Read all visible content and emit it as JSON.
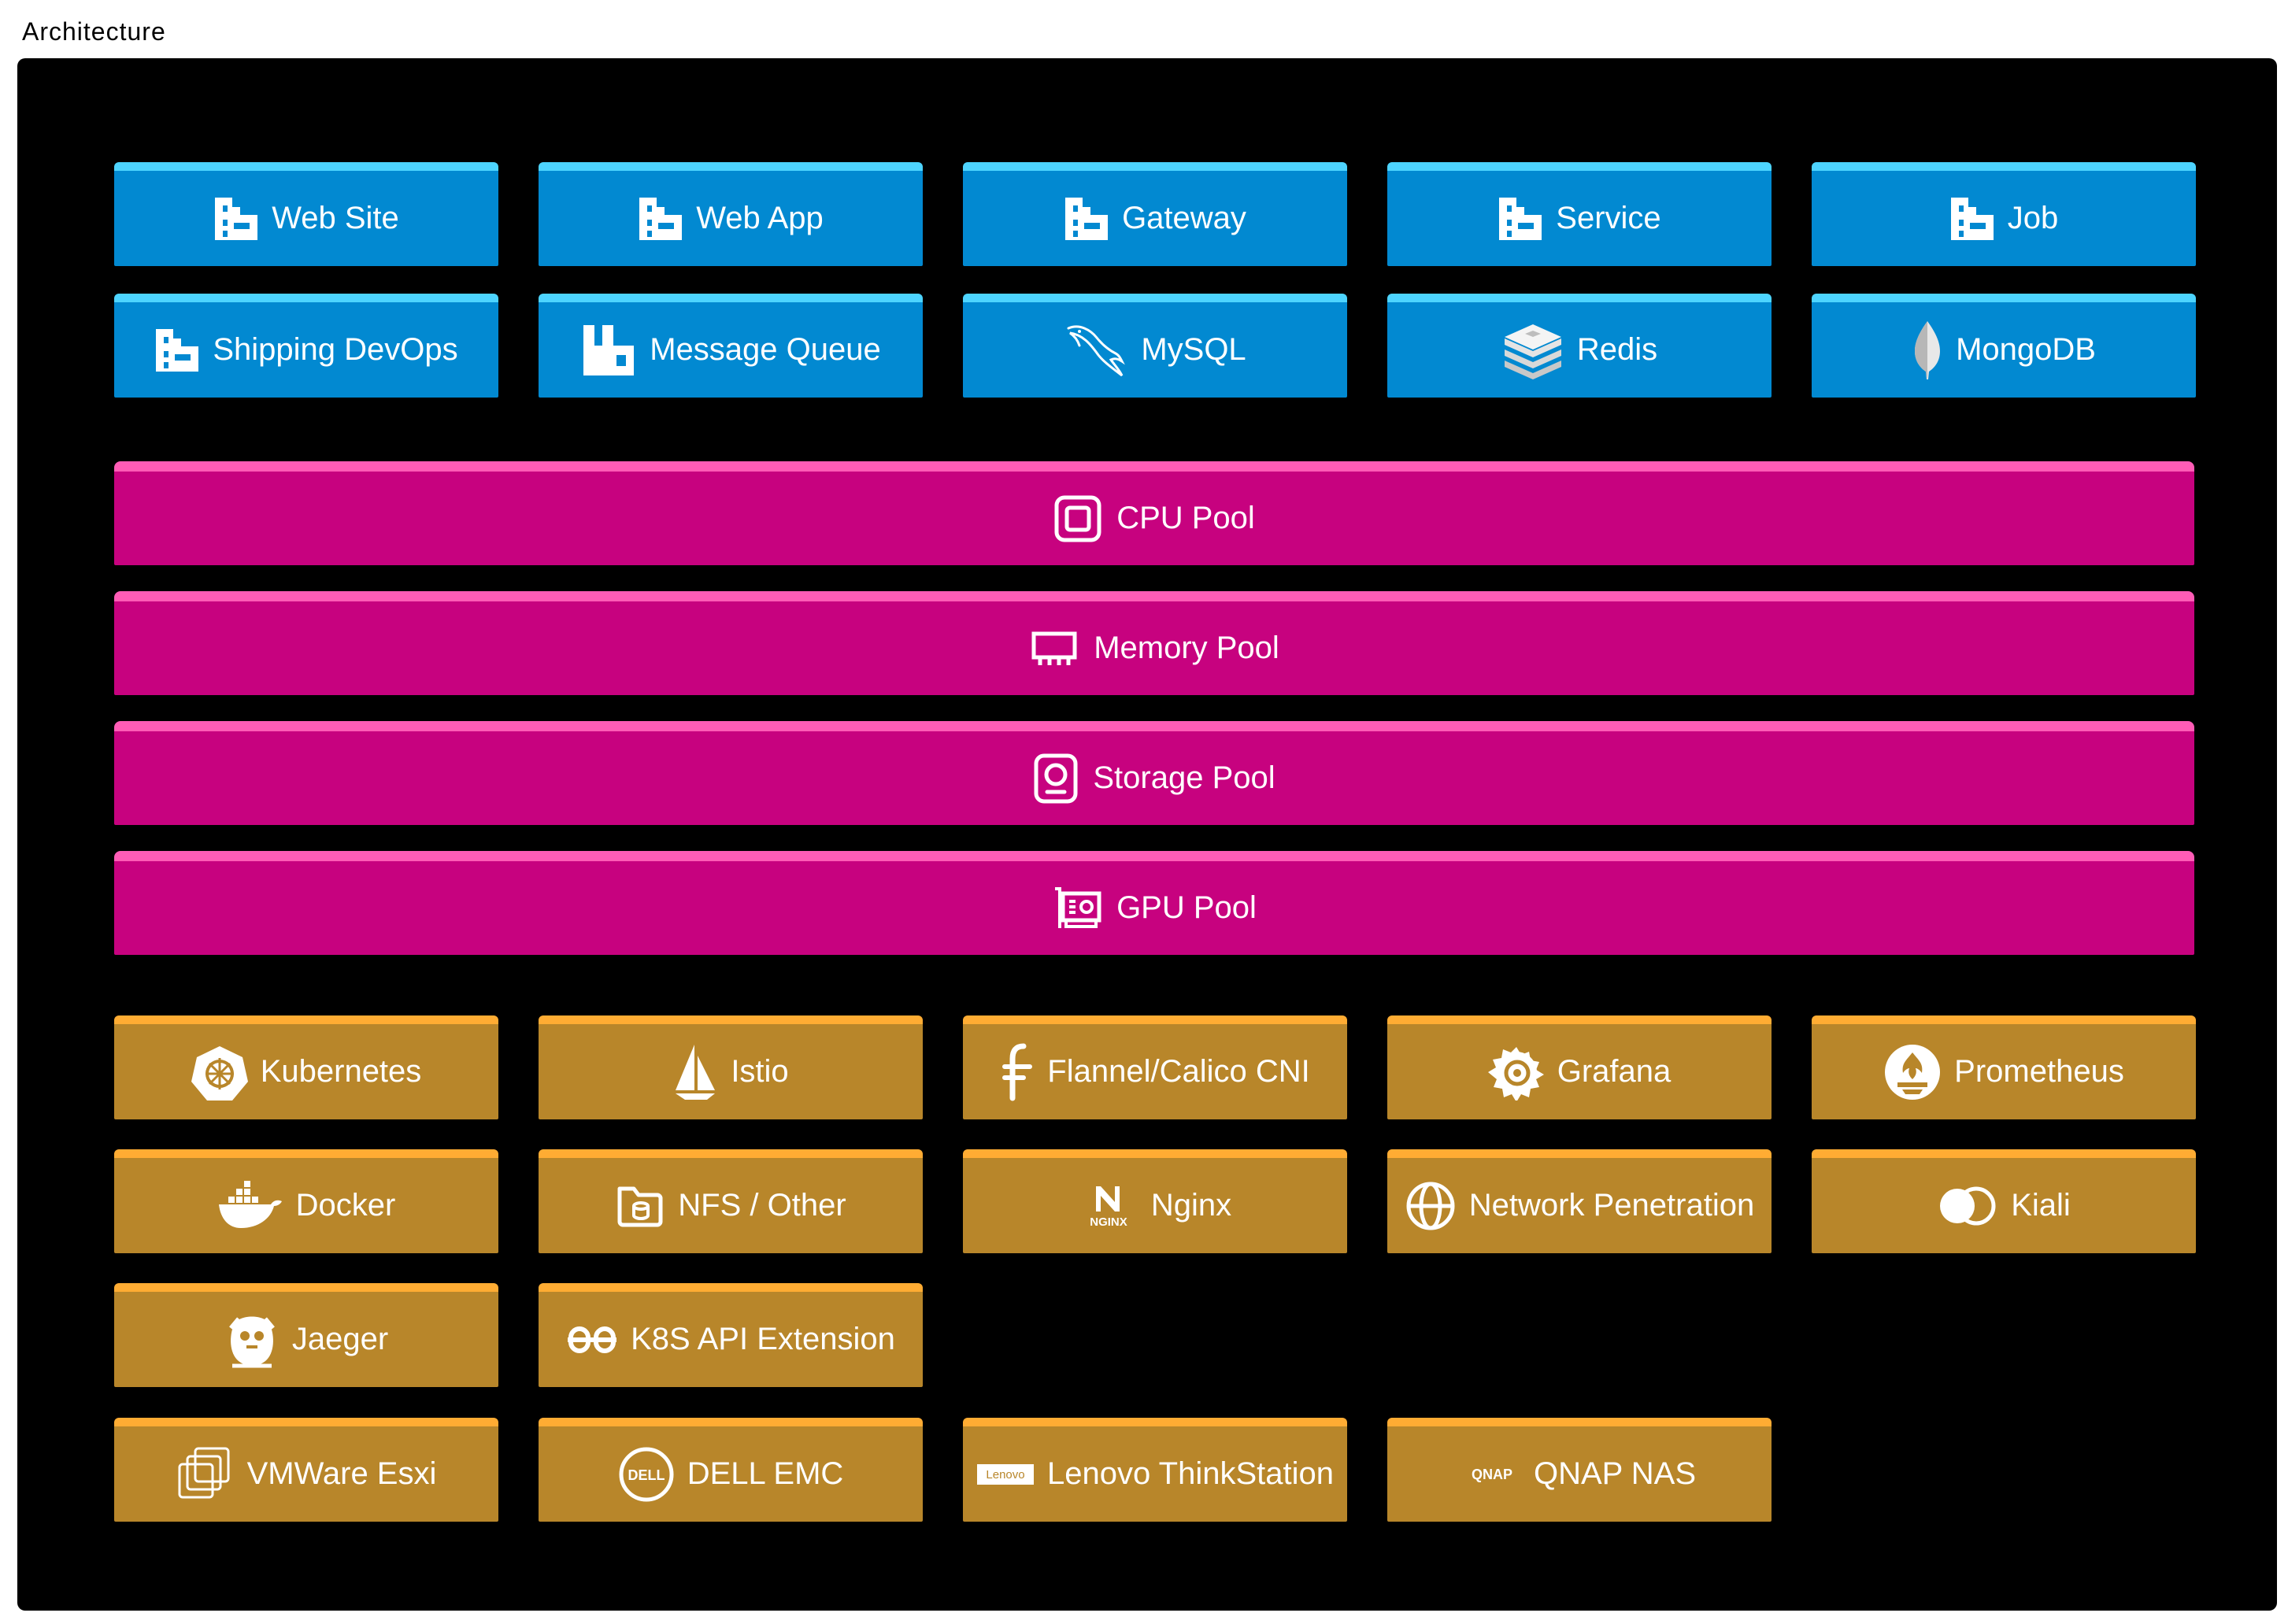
{
  "frame": {
    "title": "Architecture"
  },
  "apps": [
    {
      "label": "Web Site",
      "icon": "deployment-icon"
    },
    {
      "label": "Web App",
      "icon": "deployment-icon"
    },
    {
      "label": "Gateway",
      "icon": "deployment-icon"
    },
    {
      "label": "Service",
      "icon": "deployment-icon"
    },
    {
      "label": "Job",
      "icon": "deployment-icon"
    },
    {
      "label": "Shipping DevOps",
      "icon": "deployment-icon"
    },
    {
      "label": "Message Queue",
      "icon": "rabbitmq-icon"
    },
    {
      "label": "MySQL",
      "icon": "mysql-dolphin-icon"
    },
    {
      "label": "Redis",
      "icon": "redis-icon"
    },
    {
      "label": "MongoDB",
      "icon": "mongodb-leaf-icon"
    }
  ],
  "pools": [
    {
      "label": "CPU Pool",
      "icon": "cpu-icon"
    },
    {
      "label": "Memory Pool",
      "icon": "memory-icon"
    },
    {
      "label": "Storage Pool",
      "icon": "storage-icon"
    },
    {
      "label": "GPU Pool",
      "icon": "gpu-icon"
    }
  ],
  "infra": [
    {
      "label": "Kubernetes",
      "icon": "kubernetes-icon"
    },
    {
      "label": "Istio",
      "icon": "istio-sail-icon"
    },
    {
      "label": "Flannel/Calico CNI",
      "icon": "flannel-icon"
    },
    {
      "label": "Grafana",
      "icon": "grafana-icon"
    },
    {
      "label": "Prometheus",
      "icon": "prometheus-icon"
    },
    {
      "label": "Docker",
      "icon": "docker-whale-icon"
    },
    {
      "label": "NFS / Other",
      "icon": "nfs-folder-icon"
    },
    {
      "label": "Nginx",
      "icon": "nginx-icon",
      "logo_text": "NGINX"
    },
    {
      "label": "Network Penetration",
      "icon": "globe-icon"
    },
    {
      "label": "Kiali",
      "icon": "kiali-icon"
    },
    {
      "label": "Jaeger",
      "icon": "jaeger-icon"
    },
    {
      "label": "K8S API Extension",
      "icon": "api-link-icon"
    }
  ],
  "hardware": [
    {
      "label": "VMWare Esxi",
      "icon": "vmware-icon"
    },
    {
      "label": "DELL EMC",
      "icon": "dell-logo-icon",
      "logo_text": "DELL"
    },
    {
      "label": "Lenovo ThinkStation",
      "icon": "lenovo-logo-icon",
      "logo_text": "Lenovo"
    },
    {
      "label": "QNAP NAS",
      "icon": "qnap-logo-icon",
      "logo_text": "QNAP"
    }
  ],
  "colors": {
    "app_block": "#0289d1",
    "app_cap": "#4dd4ff",
    "pool_block": "#c7027f",
    "pool_cap": "#ff5cb6",
    "infra_block": "#b8862a",
    "infra_cap": "#ffac33",
    "canvas": "#000000"
  }
}
